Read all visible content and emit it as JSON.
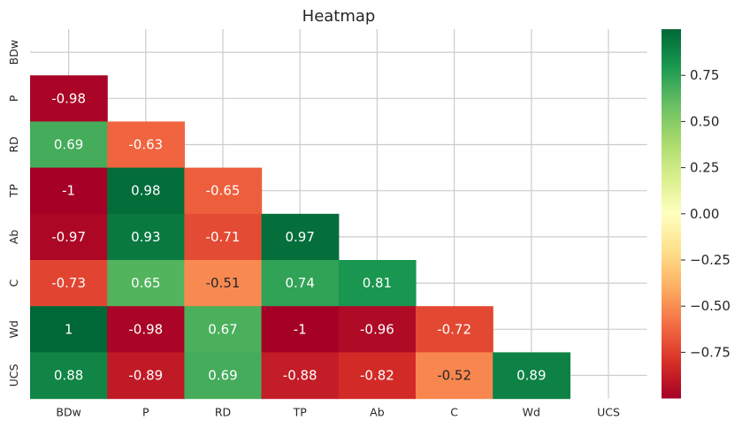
{
  "chart_data": {
    "type": "heatmap",
    "title": "Heatmap",
    "xlabel": "",
    "ylabel": "",
    "x_categories": [
      "BDw",
      "P",
      "RD",
      "TP",
      "Ab",
      "C",
      "Wd",
      "UCS"
    ],
    "y_categories": [
      "BDw",
      "P",
      "RD",
      "TP",
      "Ab",
      "C",
      "Wd",
      "UCS"
    ],
    "mask": "upper triangle incl. diagonal",
    "values": [
      [
        null,
        null,
        null,
        null,
        null,
        null,
        null,
        null
      ],
      [
        -0.98,
        null,
        null,
        null,
        null,
        null,
        null,
        null
      ],
      [
        0.69,
        -0.63,
        null,
        null,
        null,
        null,
        null,
        null
      ],
      [
        -1,
        0.98,
        -0.65,
        null,
        null,
        null,
        null,
        null
      ],
      [
        -0.97,
        0.93,
        -0.71,
        0.97,
        null,
        null,
        null,
        null
      ],
      [
        -0.73,
        0.65,
        -0.51,
        0.74,
        0.81,
        null,
        null,
        null
      ],
      [
        1,
        -0.98,
        0.67,
        -1,
        -0.96,
        -0.72,
        null,
        null
      ],
      [
        0.88,
        -0.89,
        0.69,
        -0.88,
        -0.82,
        -0.52,
        0.89,
        null
      ]
    ],
    "colormap": "RdYlGn",
    "value_range": [
      -1,
      1
    ],
    "colorbar_ticks": [
      0.75,
      0.5,
      0.25,
      0.0,
      -0.25,
      -0.5,
      -0.75
    ],
    "colorbar_tick_labels": [
      "0.75",
      "0.50",
      "0.25",
      "0.00",
      "−0.25",
      "−0.50",
      "−0.75"
    ],
    "annotations": true,
    "grid": true,
    "legend": "colorbar right"
  }
}
